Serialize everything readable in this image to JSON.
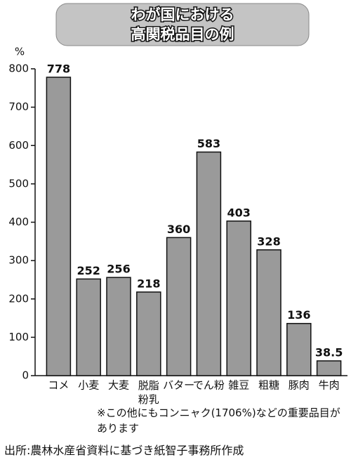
{
  "chart_data": {
    "type": "bar",
    "title": "わが国における",
    "subtitle": "高関税品目の例",
    "y_label": "%",
    "categories": [
      "コメ",
      "小麦",
      "大麦",
      "脱脂粉乳",
      "バター",
      "でん粉",
      "雑豆",
      "粗糖",
      "豚肉",
      "牛肉"
    ],
    "values": [
      778,
      252,
      256,
      218,
      360,
      583,
      403,
      328,
      136,
      38.5
    ],
    "color": "#9a9a9a",
    "ylim": [
      0,
      800
    ],
    "yticks": [
      0,
      100,
      200,
      300,
      400,
      500,
      600,
      700,
      800
    ],
    "note": "※この他にもコンニャク(1706%)などの重要品目があります",
    "source": "出所:農林水産省資料に基づき紙智子事務所作成"
  }
}
